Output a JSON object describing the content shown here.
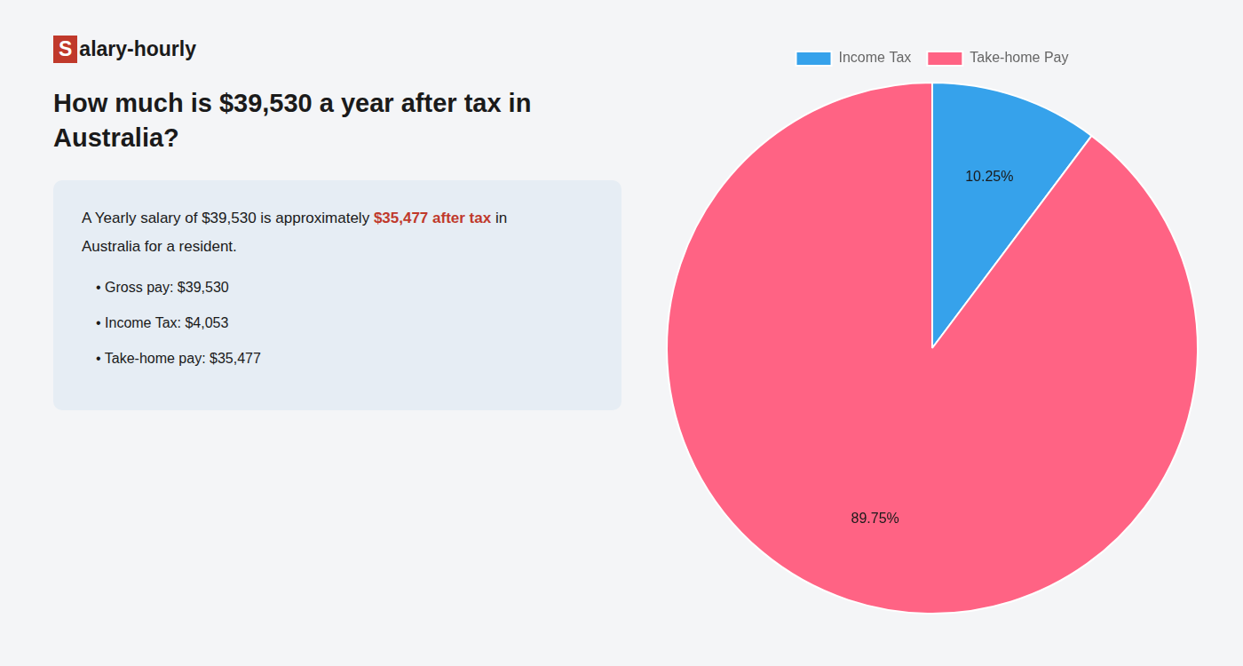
{
  "chart_data": {
    "type": "pie",
    "title": [
      "How much is $39,530 a year after tax in",
      "Australia?"
    ],
    "annotations": [
      [
        {
          "text": "S",
          "color": "#c0392b"
        },
        {
          "text": "alary-hourly"
        }
      ],
      [
        {
          "text": "A Yearly salary of $39,530 is approximately "
        },
        {
          "text": "$35,477 after tax",
          "color": "#c0392b"
        },
        {
          "text": " in"
        }
      ],
      [
        {
          "text": "Australia for a resident."
        }
      ],
      [
        {
          "text": "• Gross pay: $39,530"
        }
      ],
      [
        {
          "text": "• Income Tax: $4,053"
        }
      ],
      [
        {
          "text": "• Take-home pay: $35,477"
        }
      ]
    ],
    "categories": [
      "Income Tax",
      "Take-home Pay"
    ],
    "values": [
      10.25,
      89.75
    ],
    "value_labels": [
      "10.25%",
      "89.75%"
    ],
    "data_labels": true,
    "legend": "top"
  }
}
